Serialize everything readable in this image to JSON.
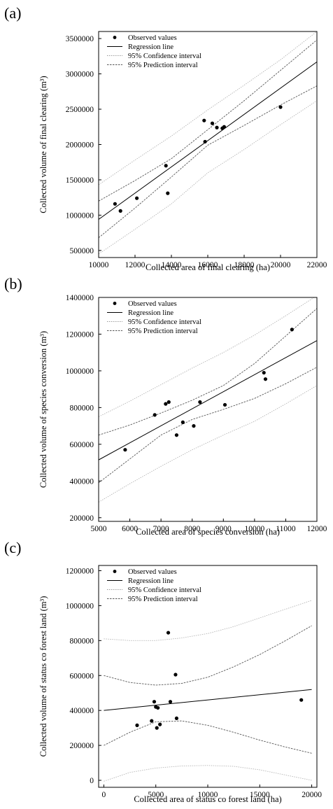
{
  "chart_data": [
    {
      "panel_label": "(a)",
      "type": "scatter",
      "xlabel": "Collected area of final clearing (ha)",
      "ylabel": "Collected volume of final clearing (m³)",
      "xlim": [
        10000,
        22000
      ],
      "ylim": [
        400000,
        3600000
      ],
      "xticks": [
        10000,
        12000,
        14000,
        16000,
        18000,
        20000,
        22000
      ],
      "yticks": [
        500000,
        1000000,
        1500000,
        2000000,
        2500000,
        3000000,
        3500000
      ],
      "legend": [
        "Observed values",
        "Regression line",
        "95% Confidence interval",
        "95% Prediction interval"
      ],
      "legend_position": "top-left",
      "points": [
        [
          10900,
          1160000
        ],
        [
          11200,
          1060000
        ],
        [
          12100,
          1240000
        ],
        [
          13700,
          1700000
        ],
        [
          13800,
          1310000
        ],
        [
          15800,
          2340000
        ],
        [
          15850,
          2040000
        ],
        [
          16250,
          2300000
        ],
        [
          16500,
          2240000
        ],
        [
          16800,
          2230000
        ],
        [
          16900,
          2250000
        ],
        [
          20000,
          2530000
        ]
      ],
      "regression": {
        "x": [
          10000,
          22000
        ],
        "y": [
          940000,
          3170000
        ]
      },
      "confidence_upper": {
        "x": [
          10000,
          12000,
          14000,
          16000,
          18000,
          20000,
          22000
        ],
        "y": [
          1200000,
          1490000,
          1800000,
          2210000,
          2620000,
          3050000,
          3480000
        ]
      },
      "confidence_lower": {
        "x": [
          10000,
          12000,
          14000,
          16000,
          18000,
          20000,
          22000
        ],
        "y": [
          680000,
          1100000,
          1540000,
          1990000,
          2270000,
          2560000,
          2830000
        ]
      },
      "prediction_upper": {
        "x": [
          10000,
          12000,
          14000,
          16000,
          18000,
          20000,
          22000
        ],
        "y": [
          1430000,
          1780000,
          2120000,
          2490000,
          2840000,
          3200000,
          3600000
        ]
      },
      "prediction_lower": {
        "x": [
          10000,
          12000,
          14000,
          16000,
          18000,
          20000,
          22000
        ],
        "y": [
          450000,
          800000,
          1160000,
          1600000,
          1930000,
          2280000,
          2620000
        ]
      }
    },
    {
      "panel_label": "(b)",
      "type": "scatter",
      "xlabel": "Collected area of species conversion (ha)",
      "ylabel": "Collected volume of species conversion (m³)",
      "xlim": [
        5000,
        12000
      ],
      "ylim": [
        180000,
        1400000
      ],
      "xticks": [
        5000,
        6000,
        7000,
        8000,
        9000,
        10000,
        11000,
        12000
      ],
      "yticks": [
        200000,
        400000,
        600000,
        800000,
        1000000,
        1200000,
        1400000
      ],
      "legend": [
        "Observed values",
        "Regression line",
        "95% Confidence interval",
        "95% Prediction interval"
      ],
      "legend_position": "top-left",
      "points": [
        [
          5850,
          570000
        ],
        [
          6800,
          760000
        ],
        [
          7150,
          820000
        ],
        [
          7250,
          830000
        ],
        [
          7500,
          650000
        ],
        [
          7700,
          720000
        ],
        [
          8050,
          700000
        ],
        [
          8250,
          830000
        ],
        [
          9050,
          815000
        ],
        [
          10300,
          990000
        ],
        [
          10350,
          955000
        ],
        [
          11200,
          1225000
        ]
      ],
      "regression": {
        "x": [
          5000,
          12000
        ],
        "y": [
          515000,
          1165000
        ]
      },
      "confidence_upper": {
        "x": [
          5000,
          6000,
          7000,
          8000,
          9000,
          10000,
          11000,
          12000
        ],
        "y": [
          650000,
          705000,
          770000,
          840000,
          920000,
          1040000,
          1190000,
          1340000
        ]
      },
      "confidence_lower": {
        "x": [
          5000,
          6000,
          7000,
          8000,
          9000,
          10000,
          11000,
          12000
        ],
        "y": [
          390000,
          520000,
          650000,
          735000,
          790000,
          850000,
          930000,
          1020000
        ]
      },
      "prediction_upper": {
        "x": [
          5000,
          6000,
          7000,
          8000,
          9000,
          10000,
          11000,
          12000
        ],
        "y": [
          750000,
          835000,
          925000,
          1015000,
          1100000,
          1195000,
          1300000,
          1410000
        ]
      },
      "prediction_lower": {
        "x": [
          5000,
          6000,
          7000,
          8000,
          9000,
          10000,
          11000,
          12000
        ],
        "y": [
          285000,
          385000,
          480000,
          570000,
          650000,
          725000,
          820000,
          920000
        ]
      }
    },
    {
      "panel_label": "(c)",
      "type": "scatter",
      "xlabel": "Collected area of status co forest land (ha)",
      "ylabel": "Collected volume of status co forest land (m³)",
      "xlim": [
        -500,
        20500
      ],
      "ylim": [
        -40000,
        1230000
      ],
      "xticks": [
        0,
        5000,
        10000,
        15000,
        20000
      ],
      "yticks": [
        0,
        200000,
        400000,
        600000,
        800000,
        1000000,
        1200000
      ],
      "legend": [
        "Observed values",
        "Regression line",
        "95% Confidence interval",
        "95% Prediction interval"
      ],
      "legend_position": "top-left",
      "points": [
        [
          3200,
          315000
        ],
        [
          4600,
          340000
        ],
        [
          4850,
          450000
        ],
        [
          5000,
          420000
        ],
        [
          5100,
          300000
        ],
        [
          5200,
          415000
        ],
        [
          5400,
          320000
        ],
        [
          6200,
          845000
        ],
        [
          6400,
          450000
        ],
        [
          6900,
          605000
        ],
        [
          7000,
          355000
        ],
        [
          19000,
          460000
        ]
      ],
      "regression": {
        "x": [
          0,
          20000
        ],
        "y": [
          400000,
          520000
        ]
      },
      "confidence_upper": {
        "x": [
          0,
          2500,
          5000,
          7500,
          10000,
          12500,
          15000,
          17500,
          20000
        ],
        "y": [
          600000,
          560000,
          545000,
          555000,
          590000,
          650000,
          720000,
          800000,
          885000
        ]
      },
      "confidence_lower": {
        "x": [
          0,
          2500,
          5000,
          7500,
          10000,
          12500,
          15000,
          17500,
          20000
        ],
        "y": [
          200000,
          275000,
          335000,
          340000,
          315000,
          275000,
          230000,
          190000,
          155000
        ]
      },
      "prediction_upper": {
        "x": [
          0,
          2500,
          5000,
          7500,
          10000,
          12500,
          15000,
          17500,
          20000
        ],
        "y": [
          810000,
          800000,
          800000,
          815000,
          840000,
          880000,
          930000,
          980000,
          1030000
        ]
      },
      "prediction_lower": {
        "x": [
          0,
          2500,
          5000,
          7500,
          10000,
          12500,
          15000,
          17500,
          20000
        ],
        "y": [
          -5000,
          45000,
          70000,
          82000,
          85000,
          80000,
          60000,
          30000,
          0
        ]
      }
    }
  ]
}
